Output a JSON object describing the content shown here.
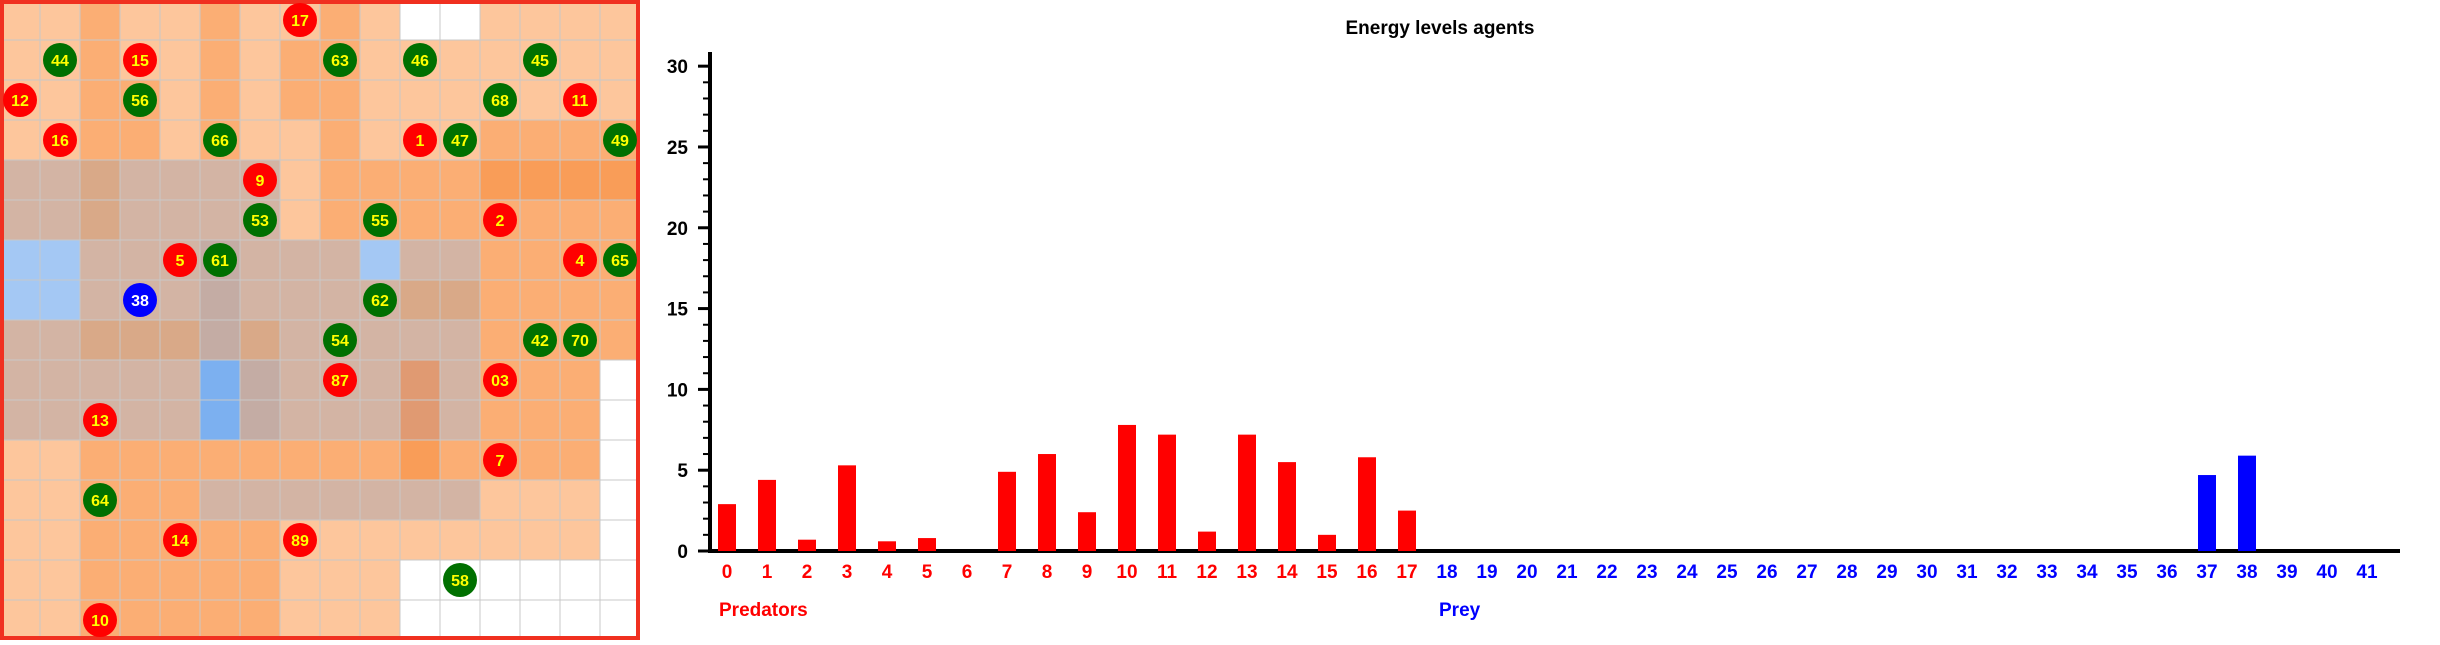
{
  "colors": {
    "predator": "#ff0000",
    "prey": "#0000ff",
    "agent_green": "#007000",
    "agent_label_yellow": "#ffff00",
    "agent_label_white": "#ffffff",
    "grid_border": "#f03020",
    "cell_line": "#c8c8c8"
  },
  "grid": {
    "rows": 16,
    "cols": 16,
    "cells": [
      [
        "light",
        "light",
        "med",
        "light",
        "light",
        "med",
        "light",
        "light",
        "med",
        "light",
        "white",
        "white",
        "light",
        "light",
        "light",
        "light"
      ],
      [
        "light",
        "light",
        "med",
        "light",
        "light",
        "med",
        "light",
        "med",
        "med",
        "light",
        "light",
        "light",
        "light",
        "light",
        "light",
        "light"
      ],
      [
        "light",
        "light",
        "med",
        "med",
        "light",
        "med",
        "light",
        "med",
        "med",
        "light",
        "light",
        "light",
        "light",
        "light",
        "light",
        "light"
      ],
      [
        "light",
        "light",
        "med",
        "med",
        "light",
        "med",
        "light",
        "light",
        "med",
        "light",
        "light",
        "light",
        "med",
        "med",
        "med",
        "med"
      ],
      [
        "taupe",
        "taupe",
        "tmed",
        "taupe",
        "taupe",
        "taupe",
        "taupe",
        "light",
        "med",
        "med",
        "med",
        "med",
        "dark",
        "dark",
        "dark",
        "dark"
      ],
      [
        "taupe",
        "taupe",
        "tmed",
        "taupe",
        "taupe",
        "taupe",
        "taupe",
        "light",
        "med",
        "med",
        "med",
        "med",
        "med",
        "med",
        "med",
        "med"
      ],
      [
        "blue",
        "blue",
        "taupe",
        "taupe",
        "taupe",
        "tgrey",
        "taupe",
        "taupe",
        "taupe",
        "blue",
        "taupe",
        "taupe",
        "med",
        "med",
        "med",
        "med"
      ],
      [
        "blue",
        "blue",
        "taupe",
        "taupe",
        "taupe",
        "tgrey",
        "taupe",
        "taupe",
        "taupe",
        "taupe",
        "tmed",
        "tmed",
        "med",
        "med",
        "med",
        "med"
      ],
      [
        "taupe",
        "taupe",
        "tmed",
        "tmed",
        "tmed",
        "tgrey",
        "tmed",
        "taupe",
        "taupe",
        "taupe",
        "taupe",
        "taupe",
        "med",
        "med",
        "med",
        "med"
      ],
      [
        "taupe",
        "taupe",
        "taupe",
        "taupe",
        "taupe",
        "bluemid",
        "tgrey",
        "taupe",
        "taupe",
        "taupe",
        "tdark",
        "taupe",
        "med",
        "med",
        "med",
        "white"
      ],
      [
        "taupe",
        "taupe",
        "taupe",
        "taupe",
        "taupe",
        "bluemid",
        "tgrey",
        "taupe",
        "taupe",
        "taupe",
        "tdark",
        "taupe",
        "med",
        "med",
        "med",
        "white"
      ],
      [
        "light",
        "light",
        "med",
        "med",
        "med",
        "med",
        "med",
        "med",
        "med",
        "med",
        "dark",
        "med",
        "med",
        "med",
        "med",
        "white"
      ],
      [
        "light",
        "light",
        "med",
        "med",
        "med",
        "taupe",
        "taupe",
        "taupe",
        "taupe",
        "taupe",
        "taupe",
        "taupe",
        "light",
        "light",
        "light",
        "white"
      ],
      [
        "light",
        "light",
        "med",
        "med",
        "med",
        "med",
        "med",
        "light",
        "light",
        "light",
        "light",
        "light",
        "light",
        "light",
        "light",
        "white"
      ],
      [
        "light",
        "light",
        "med",
        "med",
        "med",
        "med",
        "med",
        "light",
        "light",
        "light",
        "white",
        "white",
        "white",
        "white",
        "white",
        "white"
      ],
      [
        "light",
        "light",
        "med",
        "med",
        "med",
        "med",
        "med",
        "light",
        "light",
        "light",
        "white",
        "white",
        "white",
        "white",
        "white",
        "white"
      ]
    ],
    "cell_colors": {
      "light": "#fdc69c",
      "med": "#fbae74",
      "dark": "#f99d58",
      "taupe": "#d3b4a4",
      "tmed": "#d9a988",
      "tdark": "#e09a72",
      "tgrey": "#c4aca4",
      "blue": "#a4c8f4",
      "bluemid": "#7cb0f0",
      "white": "#ffffff"
    },
    "agents": [
      {
        "label": "17",
        "kind": "predator",
        "row": 0,
        "col": 7
      },
      {
        "label": "44",
        "kind": "green",
        "row": 1,
        "col": 1
      },
      {
        "label": "15",
        "kind": "predator",
        "row": 1,
        "col": 3
      },
      {
        "label": "63",
        "kind": "green",
        "row": 1,
        "col": 8
      },
      {
        "label": "46",
        "kind": "green",
        "row": 1,
        "col": 10
      },
      {
        "label": "45",
        "kind": "green",
        "row": 1,
        "col": 13
      },
      {
        "label": "12",
        "kind": "predator",
        "row": 2,
        "col": 0
      },
      {
        "label": "56",
        "kind": "green",
        "row": 2,
        "col": 3
      },
      {
        "label": "68",
        "kind": "green",
        "row": 2,
        "col": 12
      },
      {
        "label": "11",
        "kind": "predator",
        "row": 2,
        "col": 14
      },
      {
        "label": "16",
        "kind": "predator",
        "row": 3,
        "col": 1
      },
      {
        "label": "66",
        "kind": "green",
        "row": 3,
        "col": 5
      },
      {
        "label": "1",
        "kind": "predator",
        "row": 3,
        "col": 10
      },
      {
        "label": "47",
        "kind": "green",
        "row": 3,
        "col": 11
      },
      {
        "label": "49",
        "kind": "green",
        "row": 3,
        "col": 15
      },
      {
        "label": "9",
        "kind": "predator",
        "row": 4,
        "col": 6
      },
      {
        "label": "53",
        "kind": "green",
        "row": 5,
        "col": 6
      },
      {
        "label": "55",
        "kind": "green",
        "row": 5,
        "col": 9
      },
      {
        "label": "2",
        "kind": "predator",
        "row": 5,
        "col": 12
      },
      {
        "label": "5",
        "kind": "predator",
        "row": 6,
        "col": 4
      },
      {
        "label": "61",
        "kind": "green",
        "row": 6,
        "col": 5
      },
      {
        "label": "4",
        "kind": "predator",
        "row": 6,
        "col": 14
      },
      {
        "label": "65",
        "kind": "green",
        "row": 6,
        "col": 15
      },
      {
        "label": "38",
        "kind": "prey",
        "row": 7,
        "col": 3
      },
      {
        "label": "62",
        "kind": "green",
        "row": 7,
        "col": 9
      },
      {
        "label": "54",
        "kind": "green",
        "row": 8,
        "col": 8
      },
      {
        "label": "42",
        "kind": "green",
        "row": 8,
        "col": 13
      },
      {
        "label": "70",
        "kind": "green",
        "row": 8,
        "col": 14
      },
      {
        "label": "87",
        "kind": "predator",
        "row": 9,
        "col": 8
      },
      {
        "label": "03",
        "kind": "predator",
        "row": 9,
        "col": 12
      },
      {
        "label": "13",
        "kind": "predator",
        "row": 10,
        "col": 2
      },
      {
        "label": "7",
        "kind": "predator",
        "row": 11,
        "col": 12
      },
      {
        "label": "64",
        "kind": "green",
        "row": 12,
        "col": 2
      },
      {
        "label": "14",
        "kind": "predator",
        "row": 13,
        "col": 4
      },
      {
        "label": "89",
        "kind": "predator",
        "row": 13,
        "col": 7
      },
      {
        "label": "58",
        "kind": "green",
        "row": 14,
        "col": 11
      },
      {
        "label": "10",
        "kind": "predator",
        "row": 15,
        "col": 2
      }
    ]
  },
  "chart_data": {
    "type": "bar",
    "title": "Energy levels agents",
    "xlabel": "",
    "ylabel": "",
    "ylim": [
      0,
      31
    ],
    "yticks": [
      0,
      5,
      10,
      15,
      20,
      25,
      30
    ],
    "categories": [
      "0",
      "1",
      "2",
      "3",
      "4",
      "5",
      "6",
      "7",
      "8",
      "9",
      "10",
      "11",
      "12",
      "13",
      "14",
      "15",
      "16",
      "17",
      "18",
      "19",
      "20",
      "21",
      "22",
      "23",
      "24",
      "25",
      "26",
      "27",
      "28",
      "29",
      "30",
      "31",
      "32",
      "33",
      "34",
      "35",
      "36",
      "37",
      "38",
      "39",
      "40",
      "41"
    ],
    "groups": [
      {
        "name": "Predators",
        "color": "#ff0000",
        "from": 0,
        "to": 17
      },
      {
        "name": "Prey",
        "color": "#0000ff",
        "from": 18,
        "to": 41
      }
    ],
    "values": [
      2.9,
      4.4,
      0.7,
      5.3,
      0.6,
      0.8,
      0,
      4.9,
      6.0,
      2.4,
      7.8,
      7.2,
      1.2,
      7.2,
      5.5,
      1.0,
      5.8,
      2.5,
      0,
      0,
      0,
      0,
      0,
      0,
      0,
      0,
      0,
      0,
      0,
      0,
      0,
      0,
      0,
      0,
      0,
      0,
      0,
      4.7,
      5.9,
      0,
      0,
      0
    ],
    "grid": false,
    "legend": "none"
  }
}
